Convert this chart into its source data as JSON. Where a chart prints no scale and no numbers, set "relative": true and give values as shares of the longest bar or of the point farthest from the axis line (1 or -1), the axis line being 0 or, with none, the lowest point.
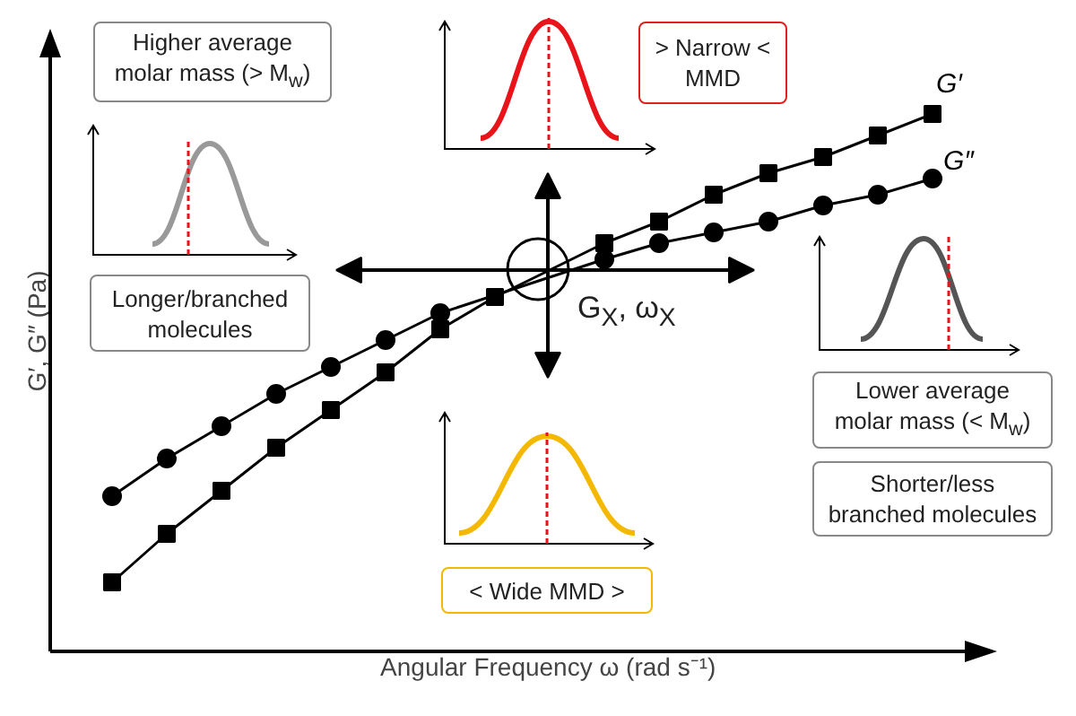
{
  "chart_data": {
    "type": "line",
    "relative": true,
    "xlabel": "Angular Frequency  ω  (rad s⁻¹)",
    "ylabel": "G′, G″ (Pa)",
    "categories": [
      null,
      null,
      null,
      null,
      null,
      null,
      null,
      null,
      null,
      null,
      null,
      null,
      null,
      null,
      null,
      null
    ],
    "series": [
      {
        "name": "G′",
        "color": "#000000",
        "marker": "square",
        "values": [
          0.13,
          0.22,
          0.3,
          0.38,
          0.45,
          0.52,
          0.6,
          0.66,
          null,
          0.76,
          0.8,
          0.85,
          0.89,
          0.92,
          0.96,
          1.0
        ]
      },
      {
        "name": "G″",
        "color": "#000000",
        "marker": "circle",
        "values": [
          0.29,
          0.36,
          0.42,
          0.48,
          0.53,
          0.58,
          0.63,
          null,
          null,
          0.73,
          0.76,
          0.78,
          0.8,
          0.83,
          0.85,
          0.88
        ]
      }
    ],
    "line_style": "solid",
    "legend": false,
    "annotations": [
      "Higher average\nmolar mass (> M$_{w}$)",
      "Longer/branched\nmolecules",
      "> Narrow <\nMMD",
      "Lower average\nmolar mass (< M$_{w}$)",
      "Shorter/less\nbranched molecules",
      "< Wide MMD >",
      "G$_{X}$, ω$_{X}$"
    ]
  }
}
